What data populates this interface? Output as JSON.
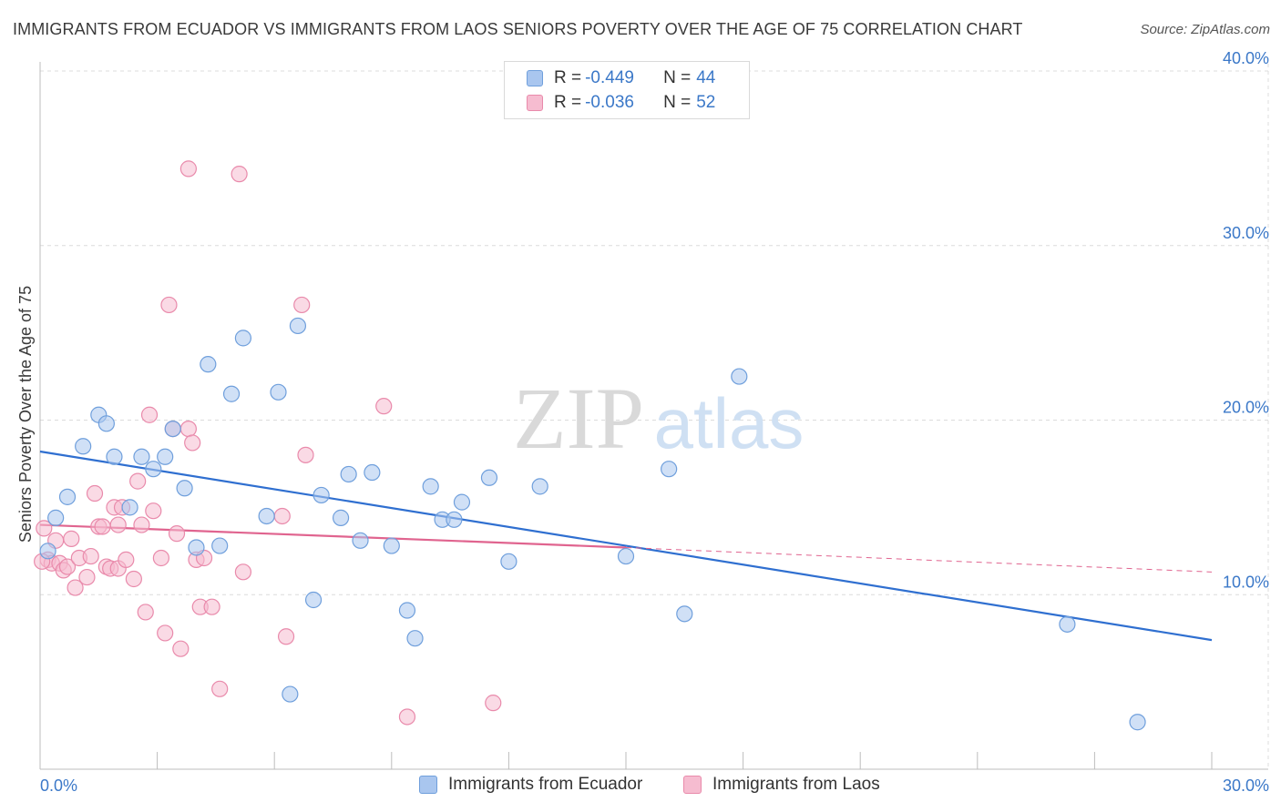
{
  "header": {
    "title": "IMMIGRANTS FROM ECUADOR VS IMMIGRANTS FROM LAOS SENIORS POVERTY OVER THE AGE OF 75 CORRELATION CHART",
    "source": "Source: ZipAtlas.com"
  },
  "watermark": {
    "zip": "ZIP",
    "atlas": "atlas"
  },
  "legend": {
    "rows": [
      {
        "r_label": "R = ",
        "r_value": "-0.449",
        "n_label": "N = ",
        "n_value": "44"
      },
      {
        "r_label": "R = ",
        "r_value": "-0.036",
        "n_label": "N = ",
        "n_value": "52"
      }
    ]
  },
  "chart_data": {
    "type": "scatter",
    "ylabel": "Seniors Poverty Over the Age of 75",
    "xlim": [
      0,
      30
    ],
    "ylim": [
      0,
      40
    ],
    "x_tick_labels": [
      "0.0%",
      "30.0%"
    ],
    "y_ticks": [
      10,
      20,
      30,
      40
    ],
    "y_tick_labels": [
      "10.0%",
      "20.0%",
      "30.0%",
      "40.0%"
    ],
    "grid": true,
    "series": [
      {
        "name": "Immigrants from Ecuador",
        "color": "#a9c6ef",
        "edge": "#6f9fdc",
        "line_color": "#2f6fd0",
        "trend": {
          "x0": 0,
          "y0": 18.2,
          "x1": 30,
          "y1": 7.4,
          "dashed_from": null
        },
        "points": [
          [
            0.2,
            12.5
          ],
          [
            0.4,
            14.4
          ],
          [
            0.7,
            15.6
          ],
          [
            1.1,
            18.5
          ],
          [
            1.5,
            20.3
          ],
          [
            1.7,
            19.8
          ],
          [
            1.9,
            17.9
          ],
          [
            2.3,
            15.0
          ],
          [
            2.6,
            17.9
          ],
          [
            2.9,
            17.2
          ],
          [
            3.2,
            17.9
          ],
          [
            3.4,
            19.5
          ],
          [
            3.7,
            16.1
          ],
          [
            4.0,
            12.7
          ],
          [
            4.3,
            23.2
          ],
          [
            4.6,
            12.8
          ],
          [
            4.9,
            21.5
          ],
          [
            5.2,
            24.7
          ],
          [
            5.8,
            14.5
          ],
          [
            6.1,
            21.6
          ],
          [
            6.6,
            25.4
          ],
          [
            7.0,
            9.7
          ],
          [
            7.2,
            15.7
          ],
          [
            7.7,
            14.4
          ],
          [
            7.9,
            16.9
          ],
          [
            8.2,
            13.1
          ],
          [
            8.5,
            17.0
          ],
          [
            9.0,
            12.8
          ],
          [
            9.4,
            9.1
          ],
          [
            9.6,
            7.5
          ],
          [
            10.0,
            16.2
          ],
          [
            10.3,
            14.3
          ],
          [
            10.6,
            14.3
          ],
          [
            10.8,
            15.3
          ],
          [
            11.5,
            16.7
          ],
          [
            12.0,
            11.9
          ],
          [
            12.8,
            16.2
          ],
          [
            15.0,
            12.2
          ],
          [
            16.1,
            17.2
          ],
          [
            16.5,
            8.9
          ],
          [
            17.9,
            22.5
          ],
          [
            26.3,
            8.3
          ],
          [
            28.1,
            2.7
          ],
          [
            6.4,
            4.3
          ]
        ]
      },
      {
        "name": "Immigrants from Laos",
        "color": "#f6bcd0",
        "edge": "#e98aab",
        "line_color": "#e0648f",
        "trend": {
          "x0": 0,
          "y0": 14.0,
          "x1": 15.0,
          "y1": 12.7,
          "dashed_to_x": 30,
          "dashed_to_y": 11.3
        },
        "points": [
          [
            0.1,
            13.8
          ],
          [
            0.2,
            12.0
          ],
          [
            0.3,
            11.8
          ],
          [
            0.4,
            13.1
          ],
          [
            0.5,
            11.8
          ],
          [
            0.6,
            11.4
          ],
          [
            0.7,
            11.6
          ],
          [
            0.8,
            13.2
          ],
          [
            0.9,
            10.4
          ],
          [
            1.0,
            12.1
          ],
          [
            1.2,
            11.0
          ],
          [
            1.3,
            12.2
          ],
          [
            1.4,
            15.8
          ],
          [
            1.5,
            13.9
          ],
          [
            1.6,
            13.9
          ],
          [
            1.7,
            11.6
          ],
          [
            1.8,
            11.5
          ],
          [
            1.9,
            15.0
          ],
          [
            2.0,
            11.5
          ],
          [
            2.1,
            15.0
          ],
          [
            2.2,
            12.0
          ],
          [
            2.0,
            14.0
          ],
          [
            2.4,
            10.9
          ],
          [
            2.5,
            16.5
          ],
          [
            2.6,
            14.0
          ],
          [
            2.7,
            9.0
          ],
          [
            2.8,
            20.3
          ],
          [
            2.9,
            14.8
          ],
          [
            3.1,
            12.1
          ],
          [
            3.2,
            7.8
          ],
          [
            3.3,
            26.6
          ],
          [
            3.4,
            19.5
          ],
          [
            3.5,
            13.5
          ],
          [
            3.6,
            6.9
          ],
          [
            3.8,
            34.4
          ],
          [
            3.8,
            19.5
          ],
          [
            3.9,
            18.7
          ],
          [
            4.0,
            12.0
          ],
          [
            4.1,
            9.3
          ],
          [
            4.2,
            12.1
          ],
          [
            4.4,
            9.3
          ],
          [
            4.6,
            4.6
          ],
          [
            5.1,
            34.1
          ],
          [
            5.2,
            11.3
          ],
          [
            6.2,
            14.5
          ],
          [
            6.3,
            7.6
          ],
          [
            6.7,
            26.6
          ],
          [
            6.8,
            18.0
          ],
          [
            8.8,
            20.8
          ],
          [
            9.4,
            3.0
          ],
          [
            11.6,
            3.8
          ],
          [
            0.05,
            11.9
          ]
        ]
      }
    ]
  }
}
